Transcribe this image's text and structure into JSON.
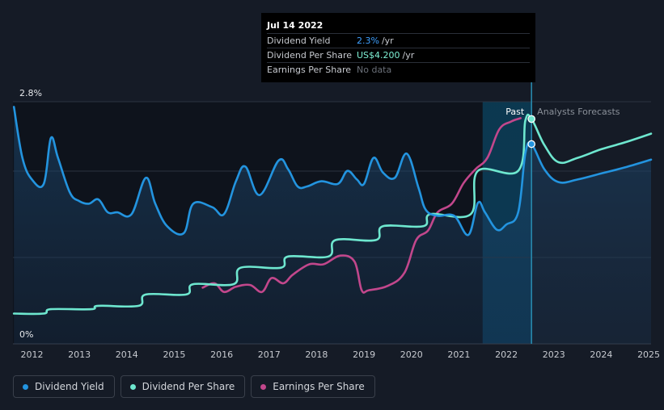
{
  "tooltip": {
    "date": "Jul 14 2022",
    "rows": [
      {
        "label": "Dividend Yield",
        "value": "2.3%",
        "unit": "/yr"
      },
      {
        "label": "Dividend Per Share",
        "value": "US$4.200",
        "unit": "/yr"
      },
      {
        "label": "Earnings Per Share",
        "value": "No data",
        "unit": ""
      }
    ]
  },
  "legend": [
    {
      "label": "Dividend Yield",
      "color": "#2394df"
    },
    {
      "label": "Dividend Per Share",
      "color": "#6ee7cf"
    },
    {
      "label": "Earnings Per Share",
      "color": "#c2478c"
    }
  ],
  "chart_data": {
    "type": "line",
    "title": "",
    "y_axis": {
      "top_label": "2.8%",
      "bottom_label": "0%",
      "ylim": [
        0,
        2.8
      ]
    },
    "x_axis": {
      "xlim": [
        2011.6,
        2025.05
      ],
      "tick_labels": [
        "2012",
        "2013",
        "2014",
        "2015",
        "2016",
        "2017",
        "2018",
        "2019",
        "2020",
        "2021",
        "2022",
        "2023",
        "2024",
        "2025"
      ]
    },
    "regions": {
      "past_label": "Past",
      "forecast_label": "Analysts Forecasts",
      "past_highlight_start": 2021.5,
      "divider_x": 2022.53
    },
    "colors": {
      "yield": "#2394df",
      "dps": "#6ee7cf",
      "eps": "#c2478c"
    },
    "series": [
      {
        "name": "Dividend Yield",
        "key": "yield",
        "x": [
          2011.62,
          2011.8,
          2012.0,
          2012.25,
          2012.4,
          2012.55,
          2012.8,
          2013.0,
          2013.2,
          2013.4,
          2013.6,
          2013.8,
          2014.1,
          2014.4,
          2014.6,
          2014.85,
          2015.2,
          2015.4,
          2015.8,
          2016.05,
          2016.3,
          2016.5,
          2016.8,
          2017.2,
          2017.4,
          2017.6,
          2017.8,
          2018.1,
          2018.45,
          2018.65,
          2018.85,
          2019.0,
          2019.2,
          2019.4,
          2019.65,
          2019.9,
          2020.15,
          2020.3,
          2020.55,
          2020.9,
          2021.2,
          2021.4,
          2021.55,
          2021.8,
          2022.0,
          2022.25,
          2022.4,
          2022.53,
          2022.8,
          2023.1,
          2023.5,
          2024.0,
          2024.5,
          2025.05
        ],
        "y": [
          2.74,
          2.15,
          1.9,
          1.85,
          2.38,
          2.15,
          1.75,
          1.65,
          1.62,
          1.67,
          1.52,
          1.52,
          1.5,
          1.92,
          1.62,
          1.36,
          1.28,
          1.62,
          1.58,
          1.5,
          1.88,
          2.05,
          1.72,
          2.12,
          2.02,
          1.82,
          1.82,
          1.88,
          1.85,
          2.0,
          1.9,
          1.85,
          2.15,
          1.98,
          1.92,
          2.2,
          1.8,
          1.55,
          1.48,
          1.48,
          1.26,
          1.63,
          1.52,
          1.32,
          1.38,
          1.52,
          2.2,
          2.31,
          2.02,
          1.87,
          1.9,
          1.97,
          2.04,
          2.13
        ]
      },
      {
        "name": "Dividend Per Share",
        "key": "dps",
        "x": [
          2011.62,
          2012.25,
          2012.4,
          2013.25,
          2013.4,
          2014.25,
          2014.4,
          2015.25,
          2015.4,
          2016.25,
          2016.4,
          2017.25,
          2017.4,
          2018.25,
          2018.4,
          2019.25,
          2019.4,
          2020.25,
          2020.4,
          2021.25,
          2021.4,
          2022.25,
          2022.4,
          2022.53,
          2022.8,
          2023.1,
          2023.5,
          2024.0,
          2024.5,
          2025.05
        ],
        "y": [
          0.35,
          0.35,
          0.4,
          0.4,
          0.44,
          0.44,
          0.57,
          0.57,
          0.69,
          0.69,
          0.88,
          0.88,
          1.01,
          1.01,
          1.2,
          1.2,
          1.36,
          1.36,
          1.5,
          1.5,
          2.0,
          2.0,
          2.58,
          2.6,
          2.3,
          2.1,
          2.15,
          2.25,
          2.33,
          2.43
        ]
      },
      {
        "name": "Earnings Per Share",
        "key": "eps",
        "x": [
          2015.6,
          2015.85,
          2016.05,
          2016.3,
          2016.6,
          2016.85,
          2017.05,
          2017.3,
          2017.5,
          2017.85,
          2018.15,
          2018.5,
          2018.8,
          2018.95,
          2019.1,
          2019.5,
          2019.85,
          2020.1,
          2020.35,
          2020.55,
          2020.85,
          2021.1,
          2021.35,
          2021.6,
          2021.85,
          2022.1,
          2022.3
        ],
        "y": [
          0.65,
          0.7,
          0.6,
          0.66,
          0.68,
          0.6,
          0.76,
          0.7,
          0.8,
          0.92,
          0.92,
          1.02,
          0.95,
          0.62,
          0.62,
          0.67,
          0.82,
          1.2,
          1.31,
          1.52,
          1.62,
          1.86,
          2.02,
          2.15,
          2.48,
          2.57,
          2.61
        ]
      }
    ],
    "markers": [
      {
        "series": "yield",
        "x": 2022.53,
        "y": 2.31
      },
      {
        "series": "dps",
        "x": 2022.53,
        "y": 2.6
      }
    ]
  }
}
